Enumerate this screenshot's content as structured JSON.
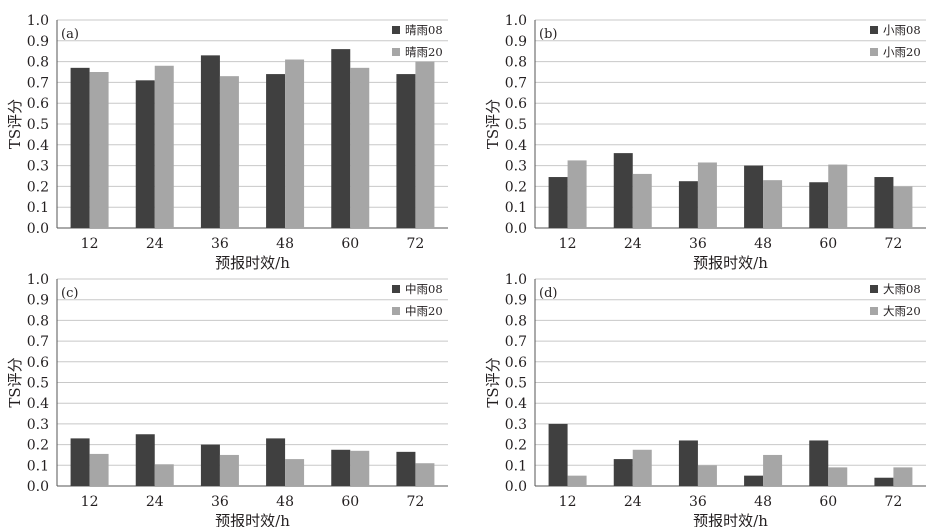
{
  "colors": {
    "dark_bar": "#404040",
    "light_bar": "#a6a6a6",
    "grid": "#c8c8c8",
    "axis": "#555555"
  },
  "chart_data": [
    {
      "type": "bar",
      "panel_label": "(a)",
      "categories": [
        "12",
        "24",
        "36",
        "48",
        "60",
        "72"
      ],
      "series": [
        {
          "name": "晴雨08",
          "values": [
            0.77,
            0.71,
            0.83,
            0.74,
            0.86,
            0.74
          ]
        },
        {
          "name": "晴雨20",
          "values": [
            0.75,
            0.78,
            0.73,
            0.81,
            0.77,
            0.8
          ]
        }
      ],
      "xlabel": "预报时效/h",
      "ylabel": "TS评分",
      "ylim": [
        0,
        1.0
      ],
      "yticks": [
        "0.0",
        "0.1",
        "0.2",
        "0.3",
        "0.4",
        "0.5",
        "0.6",
        "0.7",
        "0.8",
        "0.9",
        "1.0"
      ],
      "grid": true,
      "legend": "top-right"
    },
    {
      "type": "bar",
      "panel_label": "(b)",
      "categories": [
        "12",
        "24",
        "36",
        "48",
        "60",
        "72"
      ],
      "series": [
        {
          "name": "小雨08",
          "values": [
            0.245,
            0.36,
            0.225,
            0.3,
            0.22,
            0.245
          ]
        },
        {
          "name": "小雨20",
          "values": [
            0.325,
            0.26,
            0.315,
            0.23,
            0.305,
            0.2
          ]
        }
      ],
      "xlabel": "预报时效/h",
      "ylabel": "TS评分",
      "ylim": [
        0,
        1.0
      ],
      "yticks": [
        "0.0",
        "0.1",
        "0.2",
        "0.3",
        "0.4",
        "0.5",
        "0.6",
        "0.7",
        "0.8",
        "0.9",
        "1.0"
      ],
      "grid": true,
      "legend": "top-right"
    },
    {
      "type": "bar",
      "panel_label": "(c)",
      "categories": [
        "12",
        "24",
        "36",
        "48",
        "60",
        "72"
      ],
      "series": [
        {
          "name": "中雨08",
          "values": [
            0.23,
            0.25,
            0.2,
            0.23,
            0.175,
            0.165
          ]
        },
        {
          "name": "中雨20",
          "values": [
            0.155,
            0.105,
            0.15,
            0.13,
            0.17,
            0.11
          ]
        }
      ],
      "xlabel": "预报时效/h",
      "ylabel": "TS评分",
      "ylim": [
        0,
        1.0
      ],
      "yticks": [
        "0.0",
        "0.1",
        "0.2",
        "0.3",
        "0.4",
        "0.5",
        "0.6",
        "0.7",
        "0.8",
        "0.9",
        "1.0"
      ],
      "grid": true,
      "legend": "top-right"
    },
    {
      "type": "bar",
      "panel_label": "(d)",
      "categories": [
        "12",
        "24",
        "36",
        "48",
        "60",
        "72"
      ],
      "series": [
        {
          "name": "大雨08",
          "values": [
            0.3,
            0.13,
            0.22,
            0.05,
            0.22,
            0.04
          ]
        },
        {
          "name": "大雨20",
          "values": [
            0.05,
            0.175,
            0.1,
            0.15,
            0.09,
            0.09
          ]
        }
      ],
      "xlabel": "预报时效/h",
      "ylabel": "TS评分",
      "ylim": [
        0,
        1.0
      ],
      "yticks": [
        "0.0",
        "0.1",
        "0.2",
        "0.3",
        "0.4",
        "0.5",
        "0.6",
        "0.7",
        "0.8",
        "0.9",
        "1.0"
      ],
      "grid": true,
      "legend": "top-right"
    }
  ]
}
